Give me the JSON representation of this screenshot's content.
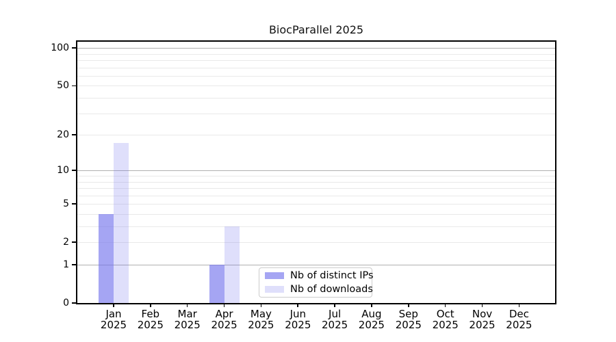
{
  "chart_data": {
    "type": "bar",
    "title": "BiocParallel 2025",
    "year_label": "2025",
    "categories": [
      "Jan",
      "Feb",
      "Mar",
      "Apr",
      "May",
      "Jun",
      "Jul",
      "Aug",
      "Sep",
      "Oct",
      "Nov",
      "Dec"
    ],
    "series": [
      {
        "name": "Nb of distinct IPs",
        "color_on_white": "#a5a5f2",
        "fill": "rgba(110,110,235,0.62)",
        "values": [
          4,
          0,
          0,
          1,
          0,
          0,
          0,
          0,
          0,
          0,
          0,
          0
        ]
      },
      {
        "name": "Nb of downloads",
        "color_on_white": "#dcdcf9",
        "fill": "rgba(110,110,235,0.22)",
        "values": [
          17,
          0,
          0,
          3,
          0,
          0,
          0,
          0,
          0,
          0,
          0,
          0
        ]
      }
    ],
    "y_axis": {
      "scale": "log1p",
      "tick_labels": [
        "0",
        "1",
        "2",
        "5",
        "10",
        "20",
        "50",
        "100"
      ],
      "tick_values": [
        0,
        1,
        2,
        5,
        10,
        20,
        50,
        100
      ],
      "major_gridlines": [
        1,
        10,
        100
      ],
      "minor_gridlines": [
        2,
        3,
        4,
        5,
        6,
        7,
        8,
        9,
        20,
        30,
        40,
        50,
        60,
        70,
        80,
        90
      ],
      "ymax": 112
    },
    "legend": {
      "position": "lower center"
    },
    "colors": {
      "major_grid": "#b0b0b0",
      "minor_grid": "#e9e9e9",
      "spine": "#000000",
      "background": "#ffffff"
    }
  }
}
